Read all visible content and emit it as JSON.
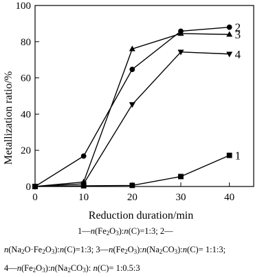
{
  "chart_data": {
    "type": "line",
    "xlabel": "Reduction duration/min",
    "ylabel": "Metallization ratio/%",
    "x": [
      0,
      10,
      20,
      30,
      40
    ],
    "xlim": [
      0,
      45
    ],
    "ylim": [
      0,
      100
    ],
    "xticks": [
      0,
      10,
      20,
      30,
      40
    ],
    "yticks": [
      0,
      20,
      40,
      60,
      80,
      100
    ],
    "grid": false,
    "legend": "inline labels at line ends",
    "series": [
      {
        "name": "1",
        "marker": "square",
        "values": [
          0,
          0.4,
          0.6,
          5.5,
          17.2
        ]
      },
      {
        "name": "2",
        "marker": "circle",
        "values": [
          0,
          16.8,
          64.7,
          85.8,
          88.0
        ]
      },
      {
        "name": "3",
        "marker": "triangle-up",
        "values": [
          0,
          2.5,
          76.0,
          84.5,
          84.0
        ]
      },
      {
        "name": "4",
        "marker": "triangle-down",
        "values": [
          0,
          1.5,
          45.3,
          74.3,
          73.2
        ]
      }
    ]
  },
  "caption": {
    "line1": [
      {
        "t": "1—"
      },
      {
        "t": "n",
        "i": true
      },
      {
        "t": "(Fe"
      },
      {
        "t": "2",
        "sub": true
      },
      {
        "t": "O"
      },
      {
        "t": "3",
        "sub": true
      },
      {
        "t": "):"
      },
      {
        "t": "n",
        "i": true
      },
      {
        "t": "(C)=1:3;  2—"
      }
    ],
    "line2": [
      {
        "t": "n",
        "i": true
      },
      {
        "t": "(Na"
      },
      {
        "t": "2",
        "sub": true
      },
      {
        "t": "O·Fe"
      },
      {
        "t": "2",
        "sub": true
      },
      {
        "t": "O"
      },
      {
        "t": "3",
        "sub": true
      },
      {
        "t": "):"
      },
      {
        "t": "n",
        "i": true
      },
      {
        "t": "(C)=1:3; 3—"
      },
      {
        "t": "n",
        "i": true
      },
      {
        "t": "(Fe"
      },
      {
        "t": "2",
        "sub": true
      },
      {
        "t": "O"
      },
      {
        "t": "3",
        "sub": true
      },
      {
        "t": "):"
      },
      {
        "t": "n",
        "i": true
      },
      {
        "t": "(Na"
      },
      {
        "t": "2",
        "sub": true
      },
      {
        "t": "CO"
      },
      {
        "t": "3",
        "sub": true
      },
      {
        "t": "):"
      },
      {
        "t": "n",
        "i": true
      },
      {
        "t": "(C)= 1:1:3;"
      }
    ],
    "line3": [
      {
        "t": "4—"
      },
      {
        "t": "n",
        "i": true
      },
      {
        "t": "(Fe"
      },
      {
        "t": "2",
        "sub": true
      },
      {
        "t": "O"
      },
      {
        "t": "3",
        "sub": true
      },
      {
        "t": "):"
      },
      {
        "t": "n",
        "i": true
      },
      {
        "t": "(Na"
      },
      {
        "t": "2",
        "sub": true
      },
      {
        "t": "CO"
      },
      {
        "t": "3",
        "sub": true
      },
      {
        "t": "): "
      },
      {
        "t": "n",
        "i": true
      },
      {
        "t": "(C)= 1:0.5:3"
      }
    ]
  }
}
